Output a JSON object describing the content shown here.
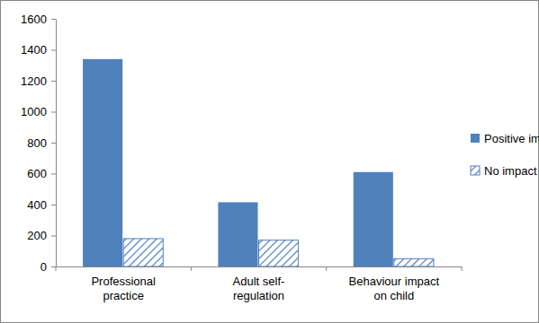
{
  "chart_data": {
    "type": "bar",
    "categories": [
      "Professional practice",
      "Adult self-regulation",
      "Behaviour impact on child"
    ],
    "series": [
      {
        "name": "Positive impact",
        "color": "#4f81bd",
        "values": [
          1340,
          415,
          610
        ]
      },
      {
        "name": "No impact",
        "color": "#4f81bd",
        "values": [
          180,
          170,
          50
        ]
      }
    ],
    "ylim": [
      0,
      1600
    ],
    "yticks": [
      0,
      200,
      400,
      600,
      800,
      1000,
      1200,
      1400,
      1600
    ],
    "grid": false,
    "legend": "right"
  }
}
